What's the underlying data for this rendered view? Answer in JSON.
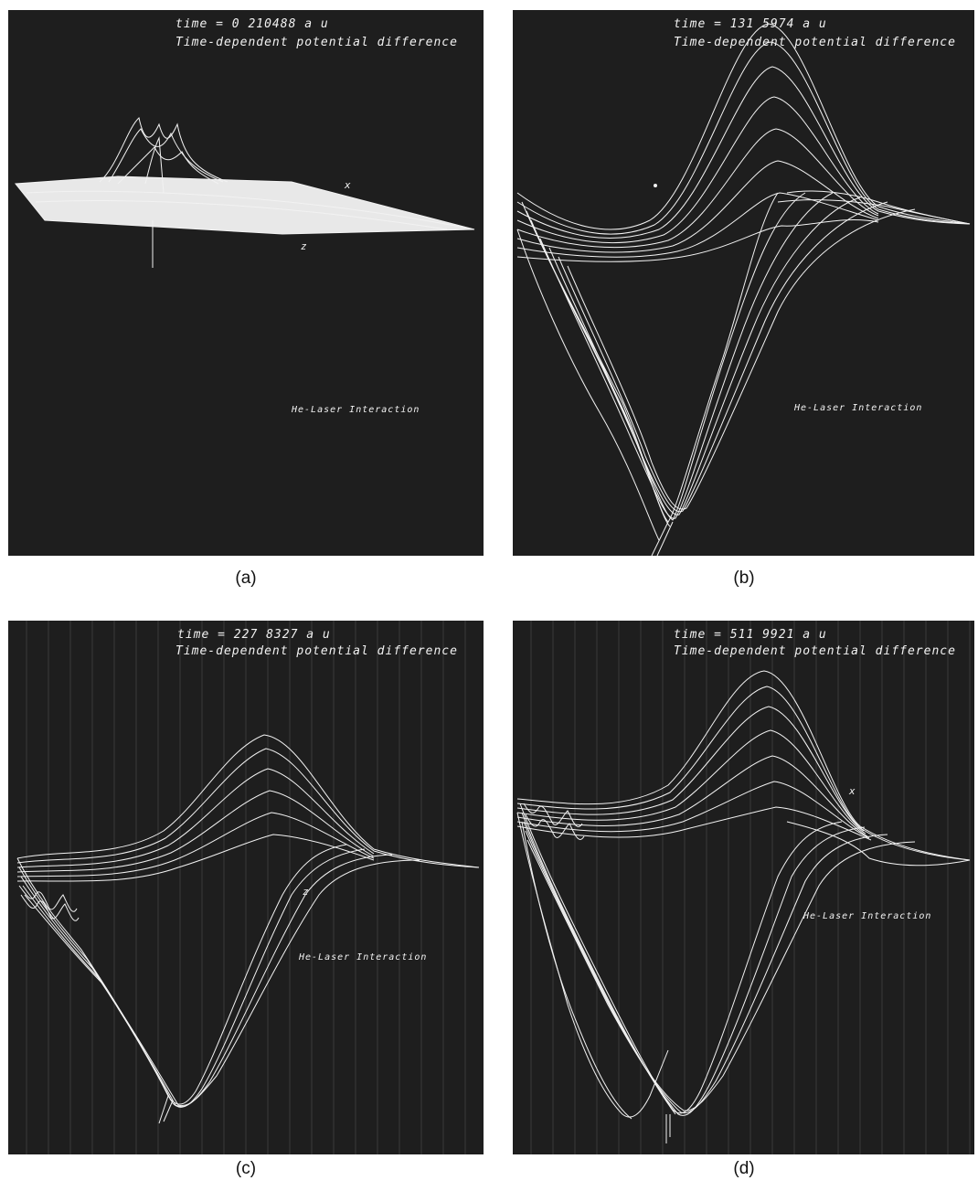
{
  "colors": {
    "panel_bg": "#1e1e1e",
    "trace": "#f2f2f2",
    "caption": "#111111"
  },
  "panels": [
    {
      "id": "a",
      "caption": "(a)",
      "time_label": "time =  0 210488 a u",
      "subtitle": "Time-dependent potential difference",
      "interaction_label": "He-Laser Interaction",
      "axis_x": "x",
      "axis_z": "z"
    },
    {
      "id": "b",
      "caption": "(b)",
      "time_label": "time =  131 5974 a u",
      "subtitle": "Time-dependent potential difference",
      "interaction_label": "He-Laser Interaction"
    },
    {
      "id": "c",
      "caption": "(c)",
      "time_label": "time =  227 8327 a u",
      "subtitle": "Time-dependent potential difference",
      "interaction_label": "He-Laser Interaction",
      "axis_z": "z"
    },
    {
      "id": "d",
      "caption": "(d)",
      "time_label": "time =  511 9921 a u",
      "subtitle": "Time-dependent potential difference",
      "interaction_label": "He-Laser Interaction",
      "axis_x": "x"
    }
  ]
}
